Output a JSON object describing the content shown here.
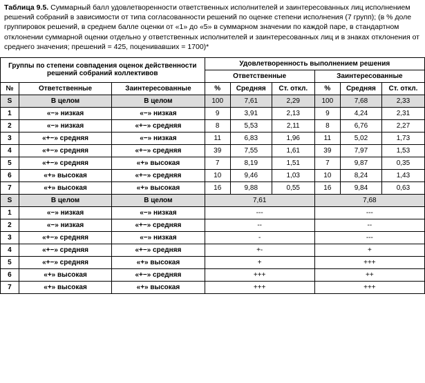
{
  "caption": {
    "label": "Таблица 9.5.",
    "text": "Суммарный балл удовлетворенности ответственных исполнителей и заинтересованных лиц исполнением решений собраний в зависимости от типа согласованности решений по оценке степени исполнения (7 групп); (в % доле группировок решений, в среднем балле оценки от «1» до «5» в суммарном значении по каждой паре, в стандартном отклонении суммарной оценки отдельно у ответственных исполнителей и заинтересованных лиц и в знаках отклонения от среднего значения; прешений = 425, поценивавших = 1700)*"
  },
  "headers": {
    "groups_title": "Группы по степени совпадения оценок действенности решений собраний коллективов",
    "sat_title": "Удовлетворенность выполнением решения",
    "resp": "Ответственные",
    "stake": "Заинтересованные",
    "no": "№",
    "pct": "%",
    "mean": "Средняя",
    "sd": "Ст. откл."
  },
  "labels": {
    "s": "S",
    "whole": "В целом",
    "low": "«−» низкая",
    "mid": "«+−» средняя",
    "high": "«+» высокая"
  },
  "top": {
    "s": {
      "g1": "whole",
      "g2": "whole",
      "rp": "100",
      "rm": "7,61",
      "rs": "2,29",
      "sp": "100",
      "sm": "7,68",
      "ss": "2,33"
    },
    "r1": {
      "g1": "low",
      "g2": "low",
      "rp": "9",
      "rm": "3,91",
      "rs": "2,13",
      "sp": "9",
      "sm": "4,24",
      "ss": "2,31"
    },
    "r2": {
      "g1": "low",
      "g2": "mid",
      "rp": "8",
      "rm": "5,53",
      "rs": "2,11",
      "sp": "8",
      "sm": "6,76",
      "ss": "2,27"
    },
    "r3": {
      "g1": "mid",
      "g2": "low",
      "rp": "11",
      "rm": "6,83",
      "rs": "1,96",
      "sp": "11",
      "sm": "5,02",
      "ss": "1,73"
    },
    "r4": {
      "g1": "mid",
      "g2": "mid",
      "rp": "39",
      "rm": "7,55",
      "rs": "1,61",
      "sp": "39",
      "sm": "7,97",
      "ss": "1,53"
    },
    "r5": {
      "g1": "mid",
      "g2": "high",
      "rp": "7",
      "rm": "8,19",
      "rs": "1,51",
      "sp": "7",
      "sm": "9,87",
      "ss": "0,35"
    },
    "r6": {
      "g1": "high",
      "g2": "mid",
      "rp": "10",
      "rm": "9,46",
      "rs": "1,03",
      "sp": "10",
      "sm": "8,24",
      "ss": "1,43"
    },
    "r7": {
      "g1": "high",
      "g2": "high",
      "rp": "16",
      "rm": "9,88",
      "rs": "0,55",
      "sp": "16",
      "sm": "9,84",
      "ss": "0,63"
    }
  },
  "bottom": {
    "s": {
      "g1": "whole",
      "g2": "whole",
      "r": "7,61",
      "s": "7,68"
    },
    "r1": {
      "g1": "low",
      "g2": "low",
      "r": "---",
      "s": "---"
    },
    "r2": {
      "g1": "low",
      "g2": "mid",
      "r": "--",
      "s": "--"
    },
    "r3": {
      "g1": "mid",
      "g2": "low",
      "r": "-",
      "s": "---"
    },
    "r4": {
      "g1": "mid",
      "g2": "mid",
      "r": "+-",
      "s": "+"
    },
    "r5": {
      "g1": "mid",
      "g2": "high",
      "r": "+",
      "s": "+++"
    },
    "r6": {
      "g1": "high",
      "g2": "mid",
      "r": "+++",
      "s": "++"
    },
    "r7": {
      "g1": "high",
      "g2": "high",
      "r": "+++",
      "s": "+++"
    }
  },
  "row_ids": [
    "s",
    "r1",
    "r2",
    "r3",
    "r4",
    "r5",
    "r6",
    "r7"
  ],
  "row_nums": {
    "r1": "1",
    "r2": "2",
    "r3": "3",
    "r4": "4",
    "r5": "5",
    "r6": "6",
    "r7": "7"
  }
}
